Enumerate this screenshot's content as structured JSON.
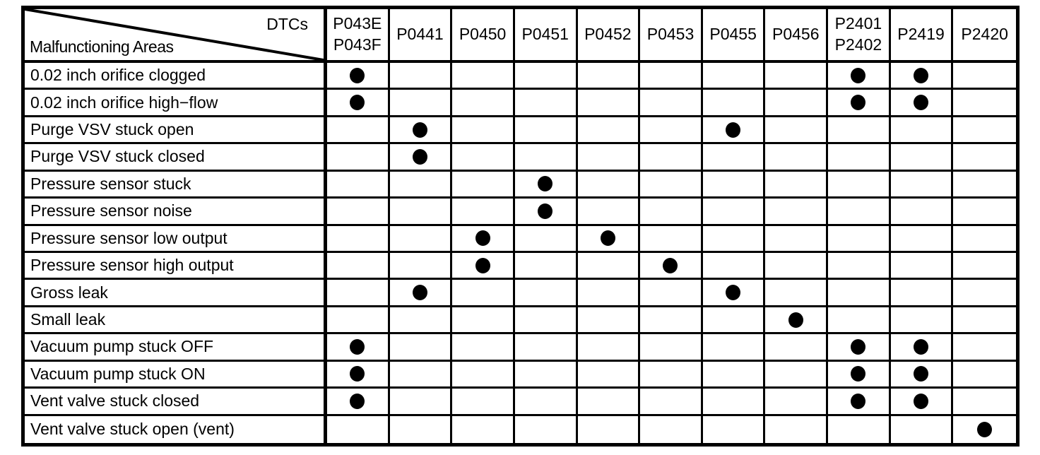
{
  "table": {
    "corner": {
      "dtcs_label": "DTCs",
      "areas_label": "Malfunctioning Areas"
    },
    "columns": [
      {
        "id": "P043E-P043F",
        "lines": [
          "P043E",
          "P043F"
        ]
      },
      {
        "id": "P0441",
        "lines": [
          "P0441"
        ]
      },
      {
        "id": "P0450",
        "lines": [
          "P0450"
        ]
      },
      {
        "id": "P0451",
        "lines": [
          "P0451"
        ]
      },
      {
        "id": "P0452",
        "lines": [
          "P0452"
        ]
      },
      {
        "id": "P0453",
        "lines": [
          "P0453"
        ]
      },
      {
        "id": "P0455",
        "lines": [
          "P0455"
        ]
      },
      {
        "id": "P0456",
        "lines": [
          "P0456"
        ]
      },
      {
        "id": "P2401-P2402",
        "lines": [
          "P2401",
          "P2402"
        ]
      },
      {
        "id": "P2419",
        "lines": [
          "P2419"
        ]
      },
      {
        "id": "P2420",
        "lines": [
          "P2420"
        ]
      }
    ],
    "dot_symbol": "filled-circle",
    "rows": [
      {
        "label": "0.02 inch orifice clogged",
        "dots": [
          1,
          0,
          0,
          0,
          0,
          0,
          0,
          0,
          1,
          1,
          0
        ]
      },
      {
        "label": "0.02 inch orifice high−flow",
        "dots": [
          1,
          0,
          0,
          0,
          0,
          0,
          0,
          0,
          1,
          1,
          0
        ]
      },
      {
        "label": "Purge VSV stuck open",
        "dots": [
          0,
          1,
          0,
          0,
          0,
          0,
          1,
          0,
          0,
          0,
          0
        ]
      },
      {
        "label": "Purge VSV stuck closed",
        "dots": [
          0,
          1,
          0,
          0,
          0,
          0,
          0,
          0,
          0,
          0,
          0
        ]
      },
      {
        "label": "Pressure sensor stuck",
        "dots": [
          0,
          0,
          0,
          1,
          0,
          0,
          0,
          0,
          0,
          0,
          0
        ]
      },
      {
        "label": "Pressure sensor noise",
        "dots": [
          0,
          0,
          0,
          1,
          0,
          0,
          0,
          0,
          0,
          0,
          0
        ]
      },
      {
        "label": "Pressure sensor low output",
        "dots": [
          0,
          0,
          1,
          0,
          1,
          0,
          0,
          0,
          0,
          0,
          0
        ]
      },
      {
        "label": "Pressure sensor high output",
        "dots": [
          0,
          0,
          1,
          0,
          0,
          1,
          0,
          0,
          0,
          0,
          0
        ]
      },
      {
        "label": "Gross leak",
        "dots": [
          0,
          1,
          0,
          0,
          0,
          0,
          1,
          0,
          0,
          0,
          0
        ]
      },
      {
        "label": "Small leak",
        "dots": [
          0,
          0,
          0,
          0,
          0,
          0,
          0,
          1,
          0,
          0,
          0
        ]
      },
      {
        "label": "Vacuum pump stuck OFF",
        "dots": [
          1,
          0,
          0,
          0,
          0,
          0,
          0,
          0,
          1,
          1,
          0
        ]
      },
      {
        "label": "Vacuum pump stuck ON",
        "dots": [
          1,
          0,
          0,
          0,
          0,
          0,
          0,
          0,
          1,
          1,
          0
        ]
      },
      {
        "label": "Vent valve stuck closed",
        "dots": [
          1,
          0,
          0,
          0,
          0,
          0,
          0,
          0,
          1,
          1,
          0
        ]
      },
      {
        "label": "Vent valve stuck open (vent)",
        "dots": [
          0,
          0,
          0,
          0,
          0,
          0,
          0,
          0,
          0,
          0,
          1
        ]
      }
    ],
    "colors": {
      "foreground": "#000000",
      "background": "#ffffff"
    }
  }
}
